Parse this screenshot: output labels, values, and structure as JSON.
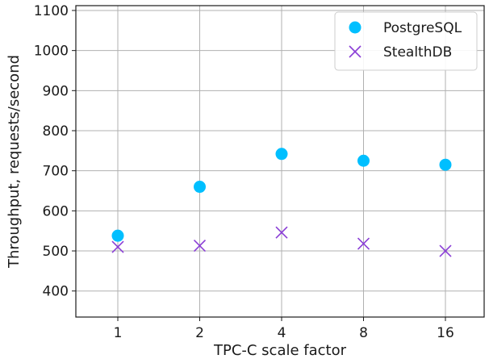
{
  "chart_data": {
    "type": "scatter",
    "categories": [
      "1",
      "2",
      "4",
      "8",
      "16"
    ],
    "xlabel": "TPC-C scale factor",
    "ylabel": "Throughput, requests/second",
    "ylim": [
      335,
      1112
    ],
    "yticks": [
      400,
      500,
      600,
      700,
      800,
      900,
      1000,
      1100
    ],
    "grid": true,
    "legend_position": "top-right",
    "series": [
      {
        "name": "PostgreSQL",
        "marker": "circle",
        "color": "#00bfff",
        "values": [
          538,
          660,
          742,
          725,
          715
        ]
      },
      {
        "name": "StealthDB",
        "marker": "x",
        "color": "#8a3ed6",
        "values": [
          510,
          513,
          546,
          518,
          500
        ]
      }
    ]
  }
}
